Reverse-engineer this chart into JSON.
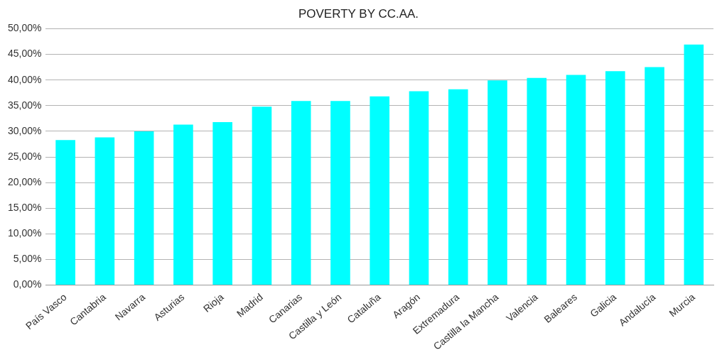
{
  "chart_data": {
    "type": "bar",
    "title": "POVERTY BY CC.AA.",
    "categories": [
      "País Vasco",
      "Cantabria",
      "Navarra",
      "Asturias",
      "Rioja",
      "Madrid",
      "Canarias",
      "Castilla y León",
      "Cataluña",
      "Aragón",
      "Extremadura",
      "Castilla la Mancha",
      "Valencia",
      "Baleares",
      "Galicia",
      "Andalucía",
      "Murcia"
    ],
    "values": [
      28.3,
      28.8,
      30.0,
      31.3,
      31.8,
      34.8,
      35.9,
      35.9,
      36.8,
      37.8,
      38.2,
      39.9,
      40.4,
      41.0,
      41.7,
      42.5,
      46.9
    ],
    "color": "#00ffff",
    "ylim": [
      0,
      50
    ],
    "yticks": [
      {
        "value": 0,
        "label": "0,00%"
      },
      {
        "value": 5,
        "label": "5,00%"
      },
      {
        "value": 10,
        "label": "10,00%"
      },
      {
        "value": 15,
        "label": "15,00%"
      },
      {
        "value": 20,
        "label": "20,00%"
      },
      {
        "value": 25,
        "label": "25,00%"
      },
      {
        "value": 30,
        "label": "30,00%"
      },
      {
        "value": 35,
        "label": "35,00%"
      },
      {
        "value": 40,
        "label": "40,00%"
      },
      {
        "value": 45,
        "label": "45,00%"
      },
      {
        "value": 50,
        "label": "50,00%"
      }
    ],
    "grid": "y",
    "legend": false
  }
}
